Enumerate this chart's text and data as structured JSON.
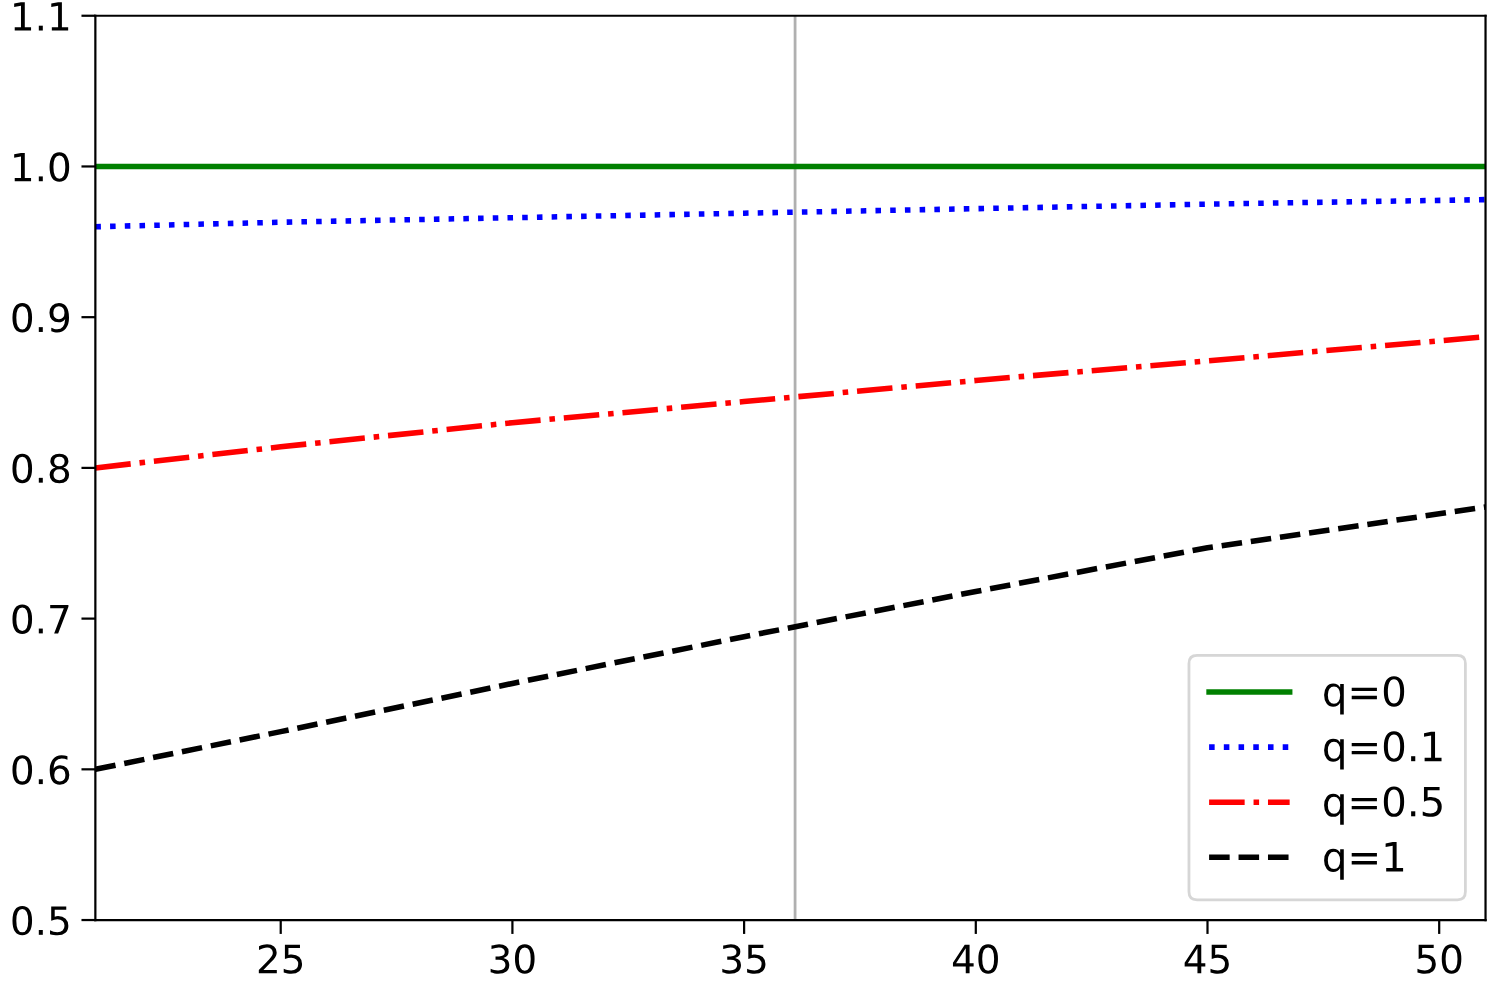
{
  "chart_data": {
    "type": "line",
    "x": [
      21,
      25,
      30,
      35,
      40,
      45,
      51
    ],
    "series": [
      {
        "name": "q=0",
        "color": "#008000",
        "line_style": "solid",
        "values": [
          1.0,
          1.0,
          1.0,
          1.0,
          1.0,
          1.0,
          1.0
        ]
      },
      {
        "name": "q=0.1",
        "color": "#0000ff",
        "line_style": "dotted",
        "values": [
          0.96,
          0.963,
          0.966,
          0.969,
          0.972,
          0.975,
          0.978
        ]
      },
      {
        "name": "q=0.5",
        "color": "#ff0000",
        "line_style": "dashdot",
        "values": [
          0.8,
          0.814,
          0.83,
          0.844,
          0.858,
          0.871,
          0.887
        ]
      },
      {
        "name": "q=1",
        "color": "#000000",
        "line_style": "dashed",
        "values": [
          0.6,
          0.625,
          0.657,
          0.688,
          0.718,
          0.747,
          0.774
        ]
      }
    ],
    "xlim": [
      21,
      51
    ],
    "xticks": [
      25,
      30,
      35,
      40,
      45,
      50
    ],
    "ylim": [
      0.5,
      1.1
    ],
    "yticks": [
      {
        "value": 0.5,
        "label": "0.5"
      },
      {
        "value": 0.6,
        "label": "0.6"
      },
      {
        "value": 0.7,
        "label": "0.7"
      },
      {
        "value": 0.8,
        "label": "0.8"
      },
      {
        "value": 0.9,
        "label": "0.9"
      },
      {
        "value": 1.0,
        "label": "1.0"
      },
      {
        "value": 1.1,
        "label": "1.1"
      }
    ],
    "ref_lines": [
      {
        "axis": "x",
        "value": 36.1,
        "color": "#b0b0b0",
        "line_style": "solid"
      }
    ],
    "grid": false,
    "legend": "bottom right",
    "marker": "none"
  }
}
